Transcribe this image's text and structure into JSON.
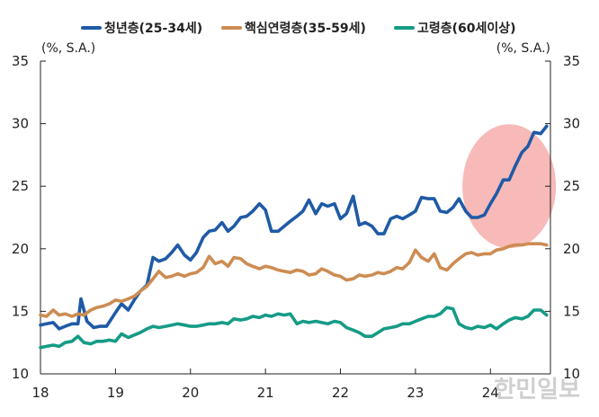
{
  "chart_data": {
    "type": "line",
    "unit_left": "(%, S.A.)",
    "unit_right": "(%, S.A.)",
    "ylim": [
      10,
      35
    ],
    "yticks": [
      10,
      15,
      20,
      25,
      30,
      35
    ],
    "xlim": [
      2018.0,
      2024.8
    ],
    "xticks": [
      {
        "value": 2018,
        "label": "18"
      },
      {
        "value": 2019,
        "label": "19"
      },
      {
        "value": 2020,
        "label": "20"
      },
      {
        "value": 2021,
        "label": "21"
      },
      {
        "value": 2022,
        "label": "22"
      },
      {
        "value": 2023,
        "label": "23"
      },
      {
        "value": 2024,
        "label": "24"
      }
    ],
    "legend_position": "top",
    "grid": false,
    "highlight": {
      "x_center": 2024.25,
      "y_center": 25.0,
      "color": "#f4a3a0"
    },
    "series": [
      {
        "name": "청년층(25-34세)",
        "color": "#1f5aa6",
        "points": [
          [
            2018.0,
            13.9
          ],
          [
            2018.08,
            14.0
          ],
          [
            2018.17,
            14.1
          ],
          [
            2018.25,
            13.6
          ],
          [
            2018.33,
            13.8
          ],
          [
            2018.42,
            14.0
          ],
          [
            2018.5,
            14.0
          ],
          [
            2018.54,
            16.0
          ],
          [
            2018.62,
            14.2
          ],
          [
            2018.71,
            13.7
          ],
          [
            2018.79,
            13.8
          ],
          [
            2018.88,
            13.8
          ],
          [
            2019.0,
            14.9
          ],
          [
            2019.08,
            15.6
          ],
          [
            2019.17,
            15.1
          ],
          [
            2019.25,
            15.9
          ],
          [
            2019.33,
            16.6
          ],
          [
            2019.42,
            17.1
          ],
          [
            2019.5,
            19.3
          ],
          [
            2019.58,
            19.0
          ],
          [
            2019.67,
            19.2
          ],
          [
            2019.75,
            19.7
          ],
          [
            2019.83,
            20.3
          ],
          [
            2019.92,
            19.5
          ],
          [
            2020.0,
            19.1
          ],
          [
            2020.08,
            19.7
          ],
          [
            2020.17,
            20.9
          ],
          [
            2020.25,
            21.4
          ],
          [
            2020.33,
            21.5
          ],
          [
            2020.42,
            22.1
          ],
          [
            2020.5,
            21.4
          ],
          [
            2020.58,
            21.8
          ],
          [
            2020.67,
            22.5
          ],
          [
            2020.75,
            22.6
          ],
          [
            2020.83,
            23.0
          ],
          [
            2020.92,
            23.6
          ],
          [
            2021.0,
            23.1
          ],
          [
            2021.08,
            21.4
          ],
          [
            2021.17,
            21.4
          ],
          [
            2021.25,
            21.8
          ],
          [
            2021.33,
            22.2
          ],
          [
            2021.42,
            22.6
          ],
          [
            2021.5,
            23.0
          ],
          [
            2021.58,
            23.9
          ],
          [
            2021.67,
            22.8
          ],
          [
            2021.75,
            23.6
          ],
          [
            2021.83,
            23.4
          ],
          [
            2021.92,
            23.6
          ],
          [
            2022.0,
            22.4
          ],
          [
            2022.08,
            22.8
          ],
          [
            2022.17,
            24.2
          ],
          [
            2022.25,
            21.9
          ],
          [
            2022.33,
            22.1
          ],
          [
            2022.42,
            21.8
          ],
          [
            2022.5,
            21.2
          ],
          [
            2022.58,
            21.2
          ],
          [
            2022.67,
            22.4
          ],
          [
            2022.75,
            22.6
          ],
          [
            2022.83,
            22.4
          ],
          [
            2022.92,
            22.7
          ],
          [
            2023.0,
            23.0
          ],
          [
            2023.08,
            24.1
          ],
          [
            2023.17,
            24.0
          ],
          [
            2023.25,
            24.0
          ],
          [
            2023.33,
            23.0
          ],
          [
            2023.42,
            22.9
          ],
          [
            2023.5,
            23.3
          ],
          [
            2023.58,
            24.0
          ],
          [
            2023.67,
            23.0
          ],
          [
            2023.75,
            22.5
          ],
          [
            2023.83,
            22.5
          ],
          [
            2023.92,
            22.7
          ],
          [
            2024.0,
            23.6
          ],
          [
            2024.08,
            24.4
          ],
          [
            2024.17,
            25.5
          ],
          [
            2024.25,
            25.5
          ],
          [
            2024.33,
            26.6
          ],
          [
            2024.42,
            27.7
          ],
          [
            2024.5,
            28.2
          ],
          [
            2024.58,
            29.3
          ],
          [
            2024.67,
            29.2
          ],
          [
            2024.75,
            29.8
          ]
        ]
      },
      {
        "name": "핵심연령층(35-59세)",
        "color": "#cd8c52",
        "points": [
          [
            2018.0,
            14.7
          ],
          [
            2018.08,
            14.6
          ],
          [
            2018.17,
            15.1
          ],
          [
            2018.25,
            14.7
          ],
          [
            2018.33,
            14.8
          ],
          [
            2018.42,
            14.6
          ],
          [
            2018.5,
            14.8
          ],
          [
            2018.58,
            14.7
          ],
          [
            2018.67,
            15.1
          ],
          [
            2018.75,
            15.3
          ],
          [
            2018.83,
            15.4
          ],
          [
            2018.92,
            15.6
          ],
          [
            2019.0,
            15.9
          ],
          [
            2019.08,
            15.8
          ],
          [
            2019.17,
            16.0
          ],
          [
            2019.25,
            16.2
          ],
          [
            2019.33,
            16.6
          ],
          [
            2019.42,
            17.0
          ],
          [
            2019.5,
            17.6
          ],
          [
            2019.58,
            18.2
          ],
          [
            2019.67,
            17.7
          ],
          [
            2019.75,
            17.8
          ],
          [
            2019.83,
            18.0
          ],
          [
            2019.92,
            17.8
          ],
          [
            2020.0,
            18.0
          ],
          [
            2020.08,
            18.1
          ],
          [
            2020.17,
            18.5
          ],
          [
            2020.25,
            19.4
          ],
          [
            2020.33,
            18.8
          ],
          [
            2020.42,
            19.0
          ],
          [
            2020.5,
            18.6
          ],
          [
            2020.58,
            19.3
          ],
          [
            2020.67,
            19.2
          ],
          [
            2020.75,
            18.8
          ],
          [
            2020.83,
            18.6
          ],
          [
            2020.92,
            18.4
          ],
          [
            2021.0,
            18.6
          ],
          [
            2021.08,
            18.5
          ],
          [
            2021.17,
            18.3
          ],
          [
            2021.25,
            18.2
          ],
          [
            2021.33,
            18.1
          ],
          [
            2021.42,
            18.3
          ],
          [
            2021.5,
            18.2
          ],
          [
            2021.58,
            17.9
          ],
          [
            2021.67,
            18.0
          ],
          [
            2021.75,
            18.4
          ],
          [
            2021.83,
            18.2
          ],
          [
            2021.92,
            17.9
          ],
          [
            2022.0,
            17.8
          ],
          [
            2022.08,
            17.5
          ],
          [
            2022.17,
            17.6
          ],
          [
            2022.25,
            17.9
          ],
          [
            2022.33,
            17.8
          ],
          [
            2022.42,
            17.9
          ],
          [
            2022.5,
            18.1
          ],
          [
            2022.58,
            18.0
          ],
          [
            2022.67,
            18.2
          ],
          [
            2022.75,
            18.5
          ],
          [
            2022.83,
            18.4
          ],
          [
            2022.92,
            18.9
          ],
          [
            2023.0,
            19.9
          ],
          [
            2023.08,
            19.3
          ],
          [
            2023.17,
            19.0
          ],
          [
            2023.25,
            19.6
          ],
          [
            2023.33,
            18.5
          ],
          [
            2023.42,
            18.3
          ],
          [
            2023.5,
            18.8
          ],
          [
            2023.58,
            19.2
          ],
          [
            2023.67,
            19.6
          ],
          [
            2023.75,
            19.7
          ],
          [
            2023.83,
            19.5
          ],
          [
            2023.92,
            19.6
          ],
          [
            2024.0,
            19.6
          ],
          [
            2024.08,
            19.9
          ],
          [
            2024.17,
            20.0
          ],
          [
            2024.25,
            20.2
          ],
          [
            2024.33,
            20.3
          ],
          [
            2024.42,
            20.3
          ],
          [
            2024.5,
            20.4
          ],
          [
            2024.58,
            20.4
          ],
          [
            2024.67,
            20.4
          ],
          [
            2024.75,
            20.3
          ]
        ]
      },
      {
        "name": "고령층(60세이상)",
        "color": "#159b86",
        "points": [
          [
            2018.0,
            12.1
          ],
          [
            2018.08,
            12.2
          ],
          [
            2018.17,
            12.3
          ],
          [
            2018.25,
            12.2
          ],
          [
            2018.33,
            12.5
          ],
          [
            2018.42,
            12.6
          ],
          [
            2018.5,
            13.0
          ],
          [
            2018.58,
            12.5
          ],
          [
            2018.67,
            12.4
          ],
          [
            2018.75,
            12.6
          ],
          [
            2018.83,
            12.6
          ],
          [
            2018.92,
            12.7
          ],
          [
            2019.0,
            12.6
          ],
          [
            2019.08,
            13.2
          ],
          [
            2019.17,
            12.9
          ],
          [
            2019.25,
            13.1
          ],
          [
            2019.33,
            13.3
          ],
          [
            2019.42,
            13.6
          ],
          [
            2019.5,
            13.8
          ],
          [
            2019.58,
            13.7
          ],
          [
            2019.67,
            13.8
          ],
          [
            2019.75,
            13.9
          ],
          [
            2019.83,
            14.0
          ],
          [
            2019.92,
            13.9
          ],
          [
            2020.0,
            13.8
          ],
          [
            2020.08,
            13.8
          ],
          [
            2020.17,
            13.9
          ],
          [
            2020.25,
            14.0
          ],
          [
            2020.33,
            14.0
          ],
          [
            2020.42,
            14.1
          ],
          [
            2020.5,
            14.0
          ],
          [
            2020.58,
            14.4
          ],
          [
            2020.67,
            14.3
          ],
          [
            2020.75,
            14.4
          ],
          [
            2020.83,
            14.6
          ],
          [
            2020.92,
            14.5
          ],
          [
            2021.0,
            14.7
          ],
          [
            2021.08,
            14.6
          ],
          [
            2021.17,
            14.8
          ],
          [
            2021.25,
            14.7
          ],
          [
            2021.33,
            14.8
          ],
          [
            2021.42,
            14.0
          ],
          [
            2021.5,
            14.2
          ],
          [
            2021.58,
            14.1
          ],
          [
            2021.67,
            14.2
          ],
          [
            2021.75,
            14.1
          ],
          [
            2021.83,
            14.0
          ],
          [
            2021.92,
            14.2
          ],
          [
            2022.0,
            14.1
          ],
          [
            2022.08,
            13.7
          ],
          [
            2022.17,
            13.5
          ],
          [
            2022.25,
            13.3
          ],
          [
            2022.33,
            13.0
          ],
          [
            2022.42,
            13.0
          ],
          [
            2022.5,
            13.3
          ],
          [
            2022.58,
            13.6
          ],
          [
            2022.67,
            13.7
          ],
          [
            2022.75,
            13.8
          ],
          [
            2022.83,
            14.0
          ],
          [
            2022.92,
            14.0
          ],
          [
            2023.0,
            14.2
          ],
          [
            2023.08,
            14.4
          ],
          [
            2023.17,
            14.6
          ],
          [
            2023.25,
            14.6
          ],
          [
            2023.33,
            14.8
          ],
          [
            2023.42,
            15.3
          ],
          [
            2023.5,
            15.2
          ],
          [
            2023.58,
            14.0
          ],
          [
            2023.67,
            13.7
          ],
          [
            2023.75,
            13.6
          ],
          [
            2023.83,
            13.8
          ],
          [
            2023.92,
            13.7
          ],
          [
            2024.0,
            13.9
          ],
          [
            2024.08,
            13.6
          ],
          [
            2024.17,
            14.0
          ],
          [
            2024.25,
            14.3
          ],
          [
            2024.33,
            14.5
          ],
          [
            2024.42,
            14.4
          ],
          [
            2024.5,
            14.6
          ],
          [
            2024.58,
            15.1
          ],
          [
            2024.67,
            15.1
          ],
          [
            2024.75,
            14.7
          ]
        ]
      }
    ]
  },
  "watermark_text": "한민일보"
}
